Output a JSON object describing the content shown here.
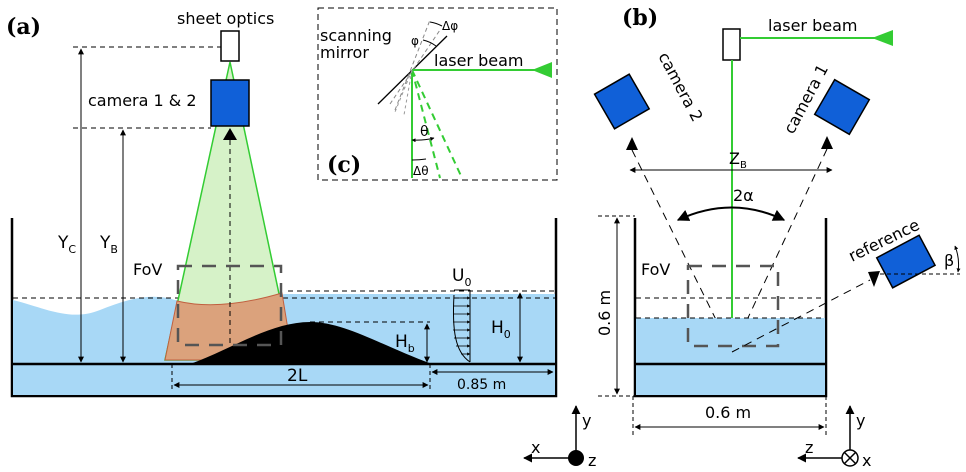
{
  "panel_a": {
    "label": "(a)",
    "sheet_optics": "sheet optics",
    "camera": "camera 1 & 2",
    "fov": "FoV",
    "yc_main": "Y",
    "yc_sub": "C",
    "yb_main": "Y",
    "yb_sub": "B",
    "hb_main": "H",
    "hb_sub": "b",
    "h0_main": "H",
    "h0_sub": "0",
    "u0_main": "U",
    "u0_sub": "0",
    "two_l": "2L",
    "dist": "0.85 m"
  },
  "panel_c": {
    "label": "(c)",
    "mirror_line1": "scanning",
    "mirror_line2": "mirror",
    "laser": "laser beam",
    "phi": "φ",
    "dphi": "Δφ",
    "theta": "θ",
    "dtheta": "Δθ"
  },
  "panel_b": {
    "label": "(b)",
    "laser": "laser beam",
    "camera1": "camera 1",
    "camera2": "camera 2",
    "zb_main": "Z",
    "zb_sub": "B",
    "alpha": "2α",
    "fov": "FoV",
    "height": "0.6 m",
    "width": "0.6 m",
    "reference": "reference",
    "beta": "β"
  },
  "axes_a": {
    "x": "x",
    "y": "y",
    "z": "z"
  },
  "axes_b": {
    "x": "x",
    "y": "y",
    "z": "z"
  },
  "colors": {
    "water": "#a8d8f6",
    "laser": "#33cc33",
    "camera": "#1060d8",
    "sheet_fill": "#d6f2c8",
    "fov_fill": "#dba27c",
    "bump": "#000000"
  }
}
